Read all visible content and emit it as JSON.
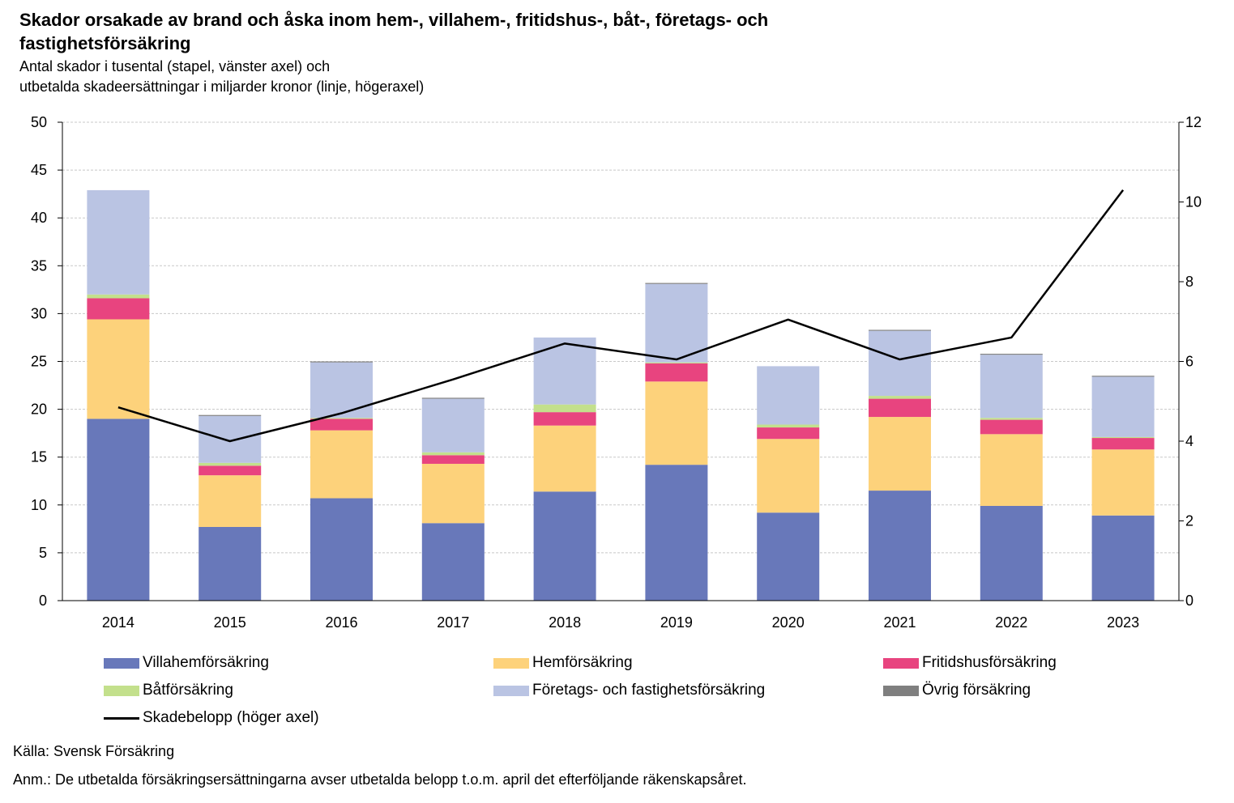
{
  "chart_data": {
    "type": "bar",
    "title": "Skador orsakade av brand och åska inom hem-, villahem-, fritidshus-, båt-, företags- och fastighetsförsäkring",
    "subtitle_lines": [
      "Antal skador i tusental (stapel, vänster axel) och",
      "utbetalda skadeersättningar i miljarder kronor (linje, högeraxel)"
    ],
    "categories": [
      "2014",
      "2015",
      "2016",
      "2017",
      "2018",
      "2019",
      "2020",
      "2021",
      "2022",
      "2023"
    ],
    "stacked": true,
    "series": [
      {
        "name": "Villahemförsäkring",
        "color": "#6878ba",
        "values": [
          19.0,
          7.7,
          10.7,
          8.1,
          11.4,
          14.2,
          9.2,
          11.5,
          9.9,
          8.9
        ]
      },
      {
        "name": "Hemförsäkring",
        "color": "#fdd27b",
        "values": [
          10.4,
          5.4,
          7.1,
          6.2,
          6.9,
          8.7,
          7.7,
          7.7,
          7.5,
          6.9
        ]
      },
      {
        "name": "Fritidshusförsäkring",
        "color": "#e8447f",
        "values": [
          2.2,
          1.0,
          1.2,
          0.9,
          1.4,
          1.9,
          1.2,
          1.9,
          1.5,
          1.2
        ]
      },
      {
        "name": "Båtförsäkring",
        "color": "#c3e08c",
        "values": [
          0.4,
          0.3,
          0.1,
          0.3,
          0.8,
          0.1,
          0.3,
          0.3,
          0.2,
          0.1
        ]
      },
      {
        "name": "Företags- och fastighetsförsäkring",
        "color": "#bac4e3",
        "values": [
          10.9,
          4.9,
          5.8,
          5.6,
          7.0,
          8.2,
          6.1,
          6.8,
          6.6,
          6.3
        ]
      },
      {
        "name": "Övrig försäkring",
        "color": "#7f7f7f",
        "values": [
          0.0,
          0.1,
          0.1,
          0.1,
          0.0,
          0.1,
          0.0,
          0.1,
          0.1,
          0.1
        ]
      }
    ],
    "line": {
      "name": "Skadebelopp (höger axel)",
      "color": "#000000",
      "axis": "right",
      "values": [
        4.85,
        4.0,
        4.7,
        5.55,
        6.45,
        6.05,
        7.05,
        6.05,
        6.6,
        10.3
      ]
    },
    "ylim": [
      0,
      50
    ],
    "yticks": [
      0,
      5,
      10,
      15,
      20,
      25,
      30,
      35,
      40,
      45,
      50
    ],
    "y2lim": [
      0,
      12
    ],
    "y2ticks": [
      0,
      2,
      4,
      6,
      8,
      10,
      12
    ],
    "grid": true,
    "legend_position": "bottom"
  },
  "legend_items": [
    {
      "label": "Villahemförsäkring",
      "color": "#6878ba",
      "kind": "box"
    },
    {
      "label": "Hemförsäkring",
      "color": "#fdd27b",
      "kind": "box"
    },
    {
      "label": "Fritidshusförsäkring",
      "color": "#e8447f",
      "kind": "box"
    },
    {
      "label": "Båtförsäkring",
      "color": "#c3e08c",
      "kind": "box"
    },
    {
      "label": "Företags- och fastighetsförsäkring",
      "color": "#bac4e3",
      "kind": "box"
    },
    {
      "label": "Övrig försäkring",
      "color": "#7f7f7f",
      "kind": "box"
    },
    {
      "label": "Skadebelopp (höger axel)",
      "color": "#000000",
      "kind": "line"
    }
  ],
  "footer": {
    "source": "Källa: Svensk Försäkring",
    "note": "Anm.: De utbetalda försäkringsersättningarna avser utbetalda belopp t.o.m. april det efterföljande räkenskapsåret."
  }
}
